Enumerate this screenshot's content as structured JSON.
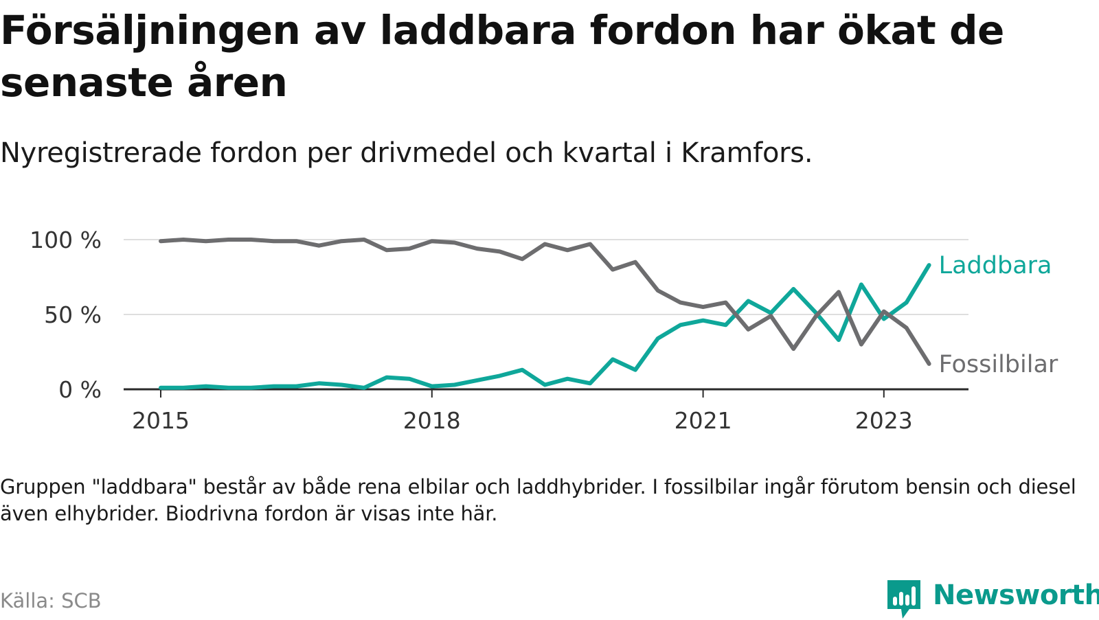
{
  "title": "Försäljningen av laddbara fordon har ökat de senaste åren",
  "subtitle": "Nyregistrerade fordon per drivmedel och kvartal i Kramfors.",
  "note": "Gruppen \"laddbara\" består av både rena elbilar och laddhybrider. I fossilbilar ingår förutom bensin och diesel även elhybrider. Biodrivna fordon är visas inte här.",
  "source": "Källa: SCB",
  "brand": {
    "name": "Newsworthy",
    "icon": "newsworthy-logo-icon"
  },
  "colors": {
    "laddbara": "#0fa79a",
    "fossilbilar": "#6d6d6f",
    "gridline": "#dedede",
    "axis": "#2a2a2a",
    "axis_text": "#333333",
    "brand": "#0a9a8c"
  },
  "chart_data": {
    "type": "line",
    "title": "Nyregistrerade fordon per drivmedel och kvartal i Kramfors.",
    "xlabel": "",
    "ylabel": "",
    "x_unit": "quarter",
    "x_start": "2015 Q1",
    "xlim": [
      0,
      34
    ],
    "ylim": [
      0,
      100
    ],
    "y_ticks": [
      0,
      50,
      100
    ],
    "y_tick_labels": [
      "0 %",
      "50 %",
      "100 %"
    ],
    "x_ticks": [
      0,
      12,
      24,
      32
    ],
    "x_tick_labels": [
      "2015",
      "2018",
      "2021",
      "2023"
    ],
    "grid": true,
    "legend": "direct labels at line ends",
    "series": [
      {
        "name": "Laddbara",
        "color": "#0fa79a",
        "values": [
          1,
          1,
          2,
          1,
          1,
          2,
          2,
          4,
          3,
          1,
          8,
          7,
          2,
          3,
          6,
          9,
          13,
          3,
          7,
          4,
          20,
          13,
          34,
          43,
          46,
          43,
          59,
          51,
          67,
          51,
          33,
          70,
          47,
          58,
          83
        ]
      },
      {
        "name": "Fossilbilar",
        "color": "#6d6d6f",
        "values": [
          99,
          100,
          99,
          100,
          100,
          99,
          99,
          96,
          99,
          100,
          93,
          94,
          99,
          98,
          94,
          92,
          87,
          97,
          93,
          97,
          80,
          85,
          66,
          58,
          55,
          58,
          40,
          49,
          27,
          49,
          65,
          30,
          52,
          41,
          17
        ]
      }
    ]
  }
}
